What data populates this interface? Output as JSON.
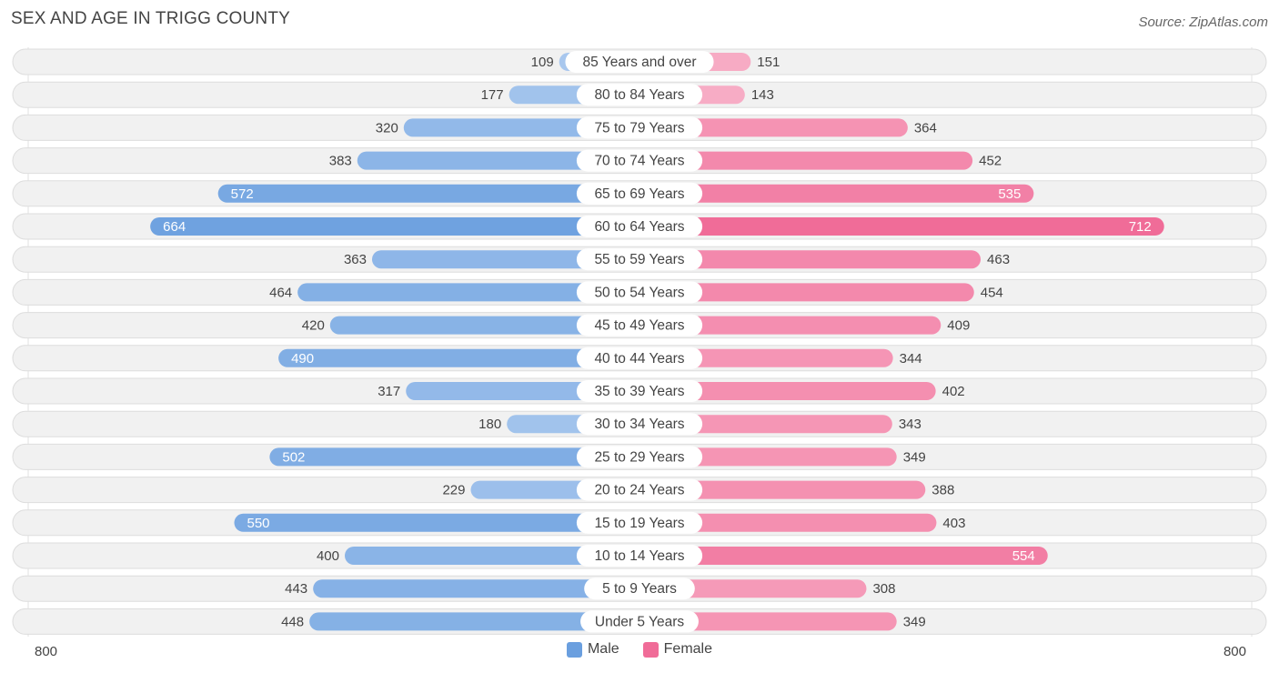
{
  "title": "SEX AND AGE IN TRIGG COUNTY",
  "source": "Source: ZipAtlas.com",
  "colors": {
    "male_light": "#a9c8ee",
    "male_dark": "#6a9fdf",
    "female_light": "#f8b1c8",
    "female_dark": "#f06c98",
    "row_bg": "#f1f1f1",
    "row_border": "#dddddd"
  },
  "chart_data": {
    "type": "bar",
    "orientation": "horizontal-diverging",
    "title": "SEX AND AGE IN TRIGG COUNTY",
    "categories": [
      "85 Years and over",
      "80 to 84 Years",
      "75 to 79 Years",
      "70 to 74 Years",
      "65 to 69 Years",
      "60 to 64 Years",
      "55 to 59 Years",
      "50 to 54 Years",
      "45 to 49 Years",
      "40 to 44 Years",
      "35 to 39 Years",
      "30 to 34 Years",
      "25 to 29 Years",
      "20 to 24 Years",
      "15 to 19 Years",
      "10 to 14 Years",
      "5 to 9 Years",
      "Under 5 Years"
    ],
    "series": [
      {
        "name": "Male",
        "values": [
          109,
          177,
          320,
          383,
          572,
          664,
          363,
          464,
          420,
          490,
          317,
          180,
          502,
          229,
          550,
          400,
          443,
          448
        ]
      },
      {
        "name": "Female",
        "values": [
          151,
          143,
          364,
          452,
          535,
          712,
          463,
          454,
          409,
          344,
          402,
          343,
          349,
          388,
          403,
          554,
          308,
          349
        ]
      }
    ],
    "xlim": [
      0,
      800
    ],
    "axis_left_label": "800",
    "axis_right_label": "800",
    "legend_position": "bottom-center"
  }
}
